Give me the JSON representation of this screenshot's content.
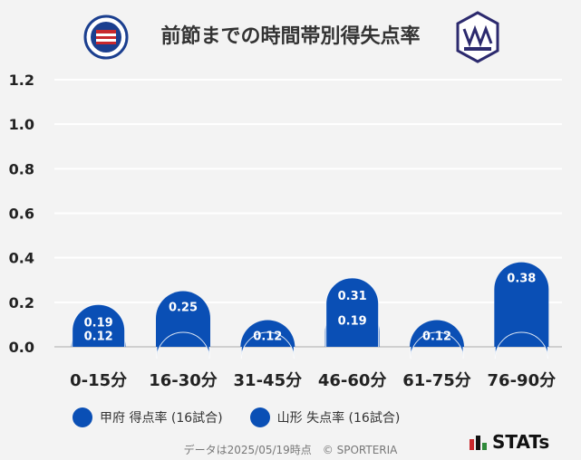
{
  "title": "前節までの時間帯別得失点率",
  "footer": "データは2025/05/19時点　© SPORTERIA",
  "brand": "STATs",
  "logos": {
    "left": "kofu-crest-icon",
    "right": "yamagata-crest-icon"
  },
  "colors": {
    "background": "#f3f3f3",
    "bar": "#0a4fb5",
    "grid": "#ffffff",
    "axis_text": "#222222",
    "badge_red": "#c8282d",
    "badge_green": "#2f8a3a"
  },
  "chart_data": {
    "type": "bar",
    "categories": [
      "0-15分",
      "16-30分",
      "31-45分",
      "46-60分",
      "61-75分",
      "76-90分"
    ],
    "series": [
      {
        "name": "甲府 得点率 (16試合)",
        "values": [
          0.19,
          0.0,
          0.0,
          0.31,
          0.0,
          0.0
        ],
        "labels": [
          "0.19",
          "",
          "",
          "0.31",
          "",
          ""
        ]
      },
      {
        "name": "山形 失点率 (16試合)",
        "values": [
          0.12,
          0.25,
          0.12,
          0.19,
          0.12,
          0.38
        ],
        "labels": [
          "0.12",
          "0.25",
          "0.12",
          "0.19",
          "0.12",
          "0.38"
        ]
      }
    ],
    "yticks": [
      "0.0",
      "0.2",
      "0.4",
      "0.6",
      "0.8",
      "1.0",
      "1.2"
    ],
    "ylim": [
      0,
      1.2
    ],
    "grid": true,
    "legend": "bottom-left"
  }
}
